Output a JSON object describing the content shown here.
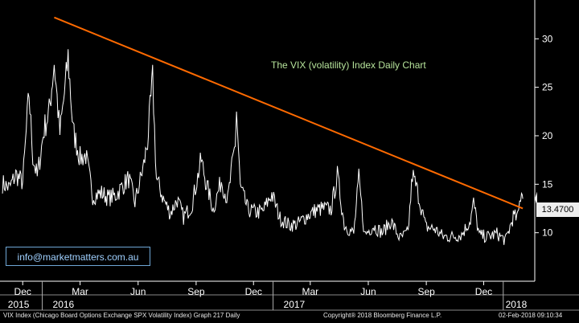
{
  "chart_data": {
    "type": "line",
    "title": "The VIX (volatility) Index Daily Chart",
    "series": [
      {
        "values": [
          {
            "date": "2015-10-30",
            "v": 15.1
          },
          {
            "date": "2015-11-10",
            "v": 14.6
          },
          {
            "date": "2015-11-20",
            "v": 16.0
          },
          {
            "date": "2015-12-01",
            "v": 15.2
          },
          {
            "date": "2015-12-11",
            "v": 24.4
          },
          {
            "date": "2015-12-17",
            "v": 17.9
          },
          {
            "date": "2015-12-24",
            "v": 15.7
          },
          {
            "date": "2016-01-04",
            "v": 20.7
          },
          {
            "date": "2016-01-12",
            "v": 22.5
          },
          {
            "date": "2016-01-20",
            "v": 27.6
          },
          {
            "date": "2016-01-29",
            "v": 20.2
          },
          {
            "date": "2016-02-08",
            "v": 26.0
          },
          {
            "date": "2016-02-11",
            "v": 28.1
          },
          {
            "date": "2016-02-19",
            "v": 20.5
          },
          {
            "date": "2016-03-01",
            "v": 17.7
          },
          {
            "date": "2016-03-10",
            "v": 18.0
          },
          {
            "date": "2016-03-21",
            "v": 13.8
          },
          {
            "date": "2016-04-04",
            "v": 14.1
          },
          {
            "date": "2016-04-15",
            "v": 13.6
          },
          {
            "date": "2016-04-26",
            "v": 13.8
          },
          {
            "date": "2016-05-06",
            "v": 14.7
          },
          {
            "date": "2016-05-17",
            "v": 15.6
          },
          {
            "date": "2016-05-27",
            "v": 13.1
          },
          {
            "date": "2016-06-10",
            "v": 17.0
          },
          {
            "date": "2016-06-16",
            "v": 19.4
          },
          {
            "date": "2016-06-24",
            "v": 25.8
          },
          {
            "date": "2016-06-30",
            "v": 15.6
          },
          {
            "date": "2016-07-11",
            "v": 13.5
          },
          {
            "date": "2016-07-22",
            "v": 12.0
          },
          {
            "date": "2016-08-02",
            "v": 13.4
          },
          {
            "date": "2016-08-12",
            "v": 11.6
          },
          {
            "date": "2016-08-25",
            "v": 12.8
          },
          {
            "date": "2016-09-09",
            "v": 17.5
          },
          {
            "date": "2016-09-16",
            "v": 15.4
          },
          {
            "date": "2016-09-28",
            "v": 12.4
          },
          {
            "date": "2016-10-11",
            "v": 15.4
          },
          {
            "date": "2016-10-21",
            "v": 13.3
          },
          {
            "date": "2016-11-02",
            "v": 19.3
          },
          {
            "date": "2016-11-04",
            "v": 22.5
          },
          {
            "date": "2016-11-10",
            "v": 14.7
          },
          {
            "date": "2016-11-22",
            "v": 12.4
          },
          {
            "date": "2016-12-05",
            "v": 12.1
          },
          {
            "date": "2016-12-16",
            "v": 12.2
          },
          {
            "date": "2016-12-30",
            "v": 14.0
          },
          {
            "date": "2017-01-12",
            "v": 11.5
          },
          {
            "date": "2017-01-26",
            "v": 10.8
          },
          {
            "date": "2017-02-09",
            "v": 10.9
          },
          {
            "date": "2017-02-23",
            "v": 11.7
          },
          {
            "date": "2017-03-09",
            "v": 12.3
          },
          {
            "date": "2017-03-21",
            "v": 12.5
          },
          {
            "date": "2017-04-03",
            "v": 12.4
          },
          {
            "date": "2017-04-13",
            "v": 15.9
          },
          {
            "date": "2017-04-24",
            "v": 10.8
          },
          {
            "date": "2017-05-09",
            "v": 9.9
          },
          {
            "date": "2017-05-17",
            "v": 15.6
          },
          {
            "date": "2017-05-26",
            "v": 9.8
          },
          {
            "date": "2017-06-09",
            "v": 10.7
          },
          {
            "date": "2017-06-23",
            "v": 10.0
          },
          {
            "date": "2017-07-07",
            "v": 11.2
          },
          {
            "date": "2017-07-21",
            "v": 9.4
          },
          {
            "date": "2017-08-03",
            "v": 10.0
          },
          {
            "date": "2017-08-10",
            "v": 16.0
          },
          {
            "date": "2017-08-18",
            "v": 14.3
          },
          {
            "date": "2017-08-31",
            "v": 10.6
          },
          {
            "date": "2017-09-14",
            "v": 10.4
          },
          {
            "date": "2017-09-28",
            "v": 9.6
          },
          {
            "date": "2017-10-13",
            "v": 9.6
          },
          {
            "date": "2017-10-27",
            "v": 9.8
          },
          {
            "date": "2017-11-10",
            "v": 11.3
          },
          {
            "date": "2017-11-15",
            "v": 13.1
          },
          {
            "date": "2017-11-24",
            "v": 9.7
          },
          {
            "date": "2017-12-08",
            "v": 9.6
          },
          {
            "date": "2017-12-22",
            "v": 9.9
          },
          {
            "date": "2018-01-05",
            "v": 9.2
          },
          {
            "date": "2018-01-17",
            "v": 11.7
          },
          {
            "date": "2018-01-24",
            "v": 11.5
          },
          {
            "date": "2018-01-30",
            "v": 14.6
          },
          {
            "date": "2018-02-01",
            "v": 13.5
          }
        ]
      }
    ],
    "trendline": {
      "x": [
        "2016-01-20",
        "2018-02-01"
      ],
      "y": [
        32.2,
        12.5
      ]
    },
    "last_value": "13.4700",
    "xlim": [
      "2015-10-26",
      "2018-02-20"
    ],
    "ylim": [
      5,
      34
    ],
    "yticks": [
      10,
      15,
      20,
      25,
      30
    ],
    "xticks": [
      {
        "date": "2015-12-01",
        "label": "Dec"
      },
      {
        "date": "2016-03-01",
        "label": "Mar"
      },
      {
        "date": "2016-06-01",
        "label": "Jun"
      },
      {
        "date": "2016-09-01",
        "label": "Sep"
      },
      {
        "date": "2016-12-01",
        "label": "Dec"
      },
      {
        "date": "2017-03-01",
        "label": "Mar"
      },
      {
        "date": "2017-06-01",
        "label": "Jun"
      },
      {
        "date": "2017-09-01",
        "label": "Sep"
      },
      {
        "date": "2017-12-01",
        "label": "Dec"
      }
    ],
    "year_labels": [
      {
        "date": "2015-10-27",
        "label": "2015"
      },
      {
        "date": "2016-01-15",
        "label": "2016"
      },
      {
        "date": "2017-01-15",
        "label": "2017"
      },
      {
        "date": "2018-01-02",
        "label": "2018"
      }
    ],
    "year_separators": [
      "2016-01-01",
      "2017-01-01",
      "2018-01-01"
    ],
    "colors": {
      "price": "#ffffff",
      "trendline": "#ff6a00",
      "title": "#b6e39b",
      "axis": "#ffffff",
      "background": "#000000"
    }
  },
  "overlay": {
    "email": "info@marketmatters.com.au"
  },
  "footer": {
    "left": "VIX Index (Chicago Board Options Exchange SPX Volatility Index) Graph 217  Daily",
    "right": "Copyright® 2018 Bloomberg Finance L.P.",
    "stamp": "02-Feb-2018 09:10:34"
  }
}
